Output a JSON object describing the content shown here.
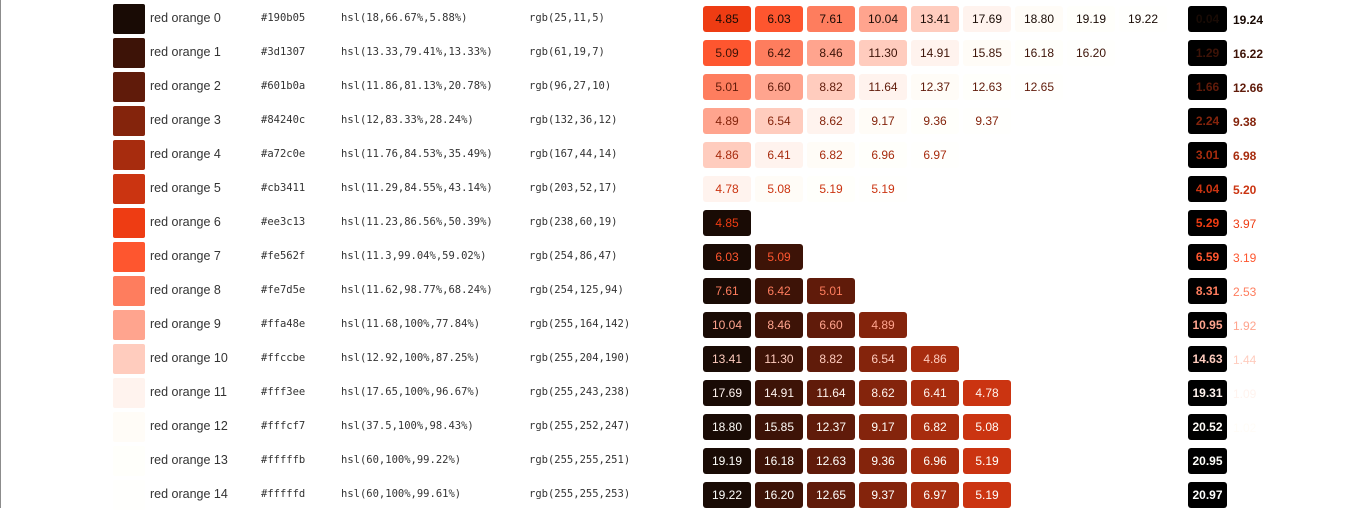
{
  "palette": {
    "rows": [
      {
        "name": "red orange 0",
        "hex": "#190b05",
        "hsl": "hsl(18,66.67%,5.88%)",
        "rgb": "rgb(25,11,5)",
        "color": "#190b05",
        "ratios": [
          "4.85",
          "6.03",
          "7.61",
          "10.04",
          "13.41",
          "17.69",
          "18.80",
          "19.19",
          "19.22"
        ],
        "lead": "0.04",
        "value": "19.24"
      },
      {
        "name": "red orange 1",
        "hex": "#3d1307",
        "hsl": "hsl(13.33,79.41%,13.33%)",
        "rgb": "rgb(61,19,7)",
        "color": "#3d1307",
        "ratios": [
          "5.09",
          "6.42",
          "8.46",
          "11.30",
          "14.91",
          "15.85",
          "16.18",
          "16.20"
        ],
        "lead": "1.29",
        "value": "16.22"
      },
      {
        "name": "red orange 2",
        "hex": "#601b0a",
        "hsl": "hsl(11.86,81.13%,20.78%)",
        "rgb": "rgb(96,27,10)",
        "color": "#601b0a",
        "ratios": [
          "5.01",
          "6.60",
          "8.82",
          "11.64",
          "12.37",
          "12.63",
          "12.65"
        ],
        "lead": "1.66",
        "value": "12.66"
      },
      {
        "name": "red orange 3",
        "hex": "#84240c",
        "hsl": "hsl(12,83.33%,28.24%)",
        "rgb": "rgb(132,36,12)",
        "color": "#84240c",
        "ratios": [
          "4.89",
          "6.54",
          "8.62",
          "9.17",
          "9.36",
          "9.37"
        ],
        "lead": "2.24",
        "value": "9.38"
      },
      {
        "name": "red orange 4",
        "hex": "#a72c0e",
        "hsl": "hsl(11.76,84.53%,35.49%)",
        "rgb": "rgb(167,44,14)",
        "color": "#a72c0e",
        "ratios": [
          "4.86",
          "6.41",
          "6.82",
          "6.96",
          "6.97"
        ],
        "lead": "3.01",
        "value": "6.98"
      },
      {
        "name": "red orange 5",
        "hex": "#cb3411",
        "hsl": "hsl(11.29,84.55%,43.14%)",
        "rgb": "rgb(203,52,17)",
        "color": "#cb3411",
        "ratios": [
          "4.78",
          "5.08",
          "5.19",
          "5.19"
        ],
        "lead": "4.04",
        "value": "5.20"
      },
      {
        "name": "red orange 6",
        "hex": "#ee3c13",
        "hsl": "hsl(11.23,86.56%,50.39%)",
        "rgb": "rgb(238,60,19)",
        "color": "#ee3c13",
        "ratios": [
          "4.85"
        ],
        "lead": "5.29",
        "value": "3.97"
      },
      {
        "name": "red orange 7",
        "hex": "#fe562f",
        "hsl": "hsl(11.3,99.04%,59.02%)",
        "rgb": "rgb(254,86,47)",
        "color": "#fe562f",
        "ratios": [
          "6.03",
          "5.09"
        ],
        "lead": "6.59",
        "value": "3.19"
      },
      {
        "name": "red orange 8",
        "hex": "#fe7d5e",
        "hsl": "hsl(11.62,98.77%,68.24%)",
        "rgb": "rgb(254,125,94)",
        "color": "#fe7d5e",
        "ratios": [
          "7.61",
          "6.42",
          "5.01"
        ],
        "lead": "8.31",
        "value": "2.53"
      },
      {
        "name": "red orange 9",
        "hex": "#ffa48e",
        "hsl": "hsl(11.68,100%,77.84%)",
        "rgb": "rgb(255,164,142)",
        "color": "#ffa48e",
        "ratios": [
          "10.04",
          "8.46",
          "6.60",
          "4.89"
        ],
        "lead": "10.95",
        "value": "1.92"
      },
      {
        "name": "red orange 10",
        "hex": "#ffccbe",
        "hsl": "hsl(12.92,100%,87.25%)",
        "rgb": "rgb(255,204,190)",
        "color": "#ffccbe",
        "ratios": [
          "13.41",
          "11.30",
          "8.82",
          "6.54",
          "4.86"
        ],
        "lead": "14.63",
        "value": "1.44"
      },
      {
        "name": "red orange 11",
        "hex": "#fff3ee",
        "hsl": "hsl(17.65,100%,96.67%)",
        "rgb": "rgb(255,243,238)",
        "color": "#fff3ee",
        "ratios": [
          "17.69",
          "14.91",
          "11.64",
          "8.62",
          "6.41",
          "4.78"
        ],
        "lead": "19.31",
        "value": "1.09"
      },
      {
        "name": "red orange 12",
        "hex": "#fffcf7",
        "hsl": "hsl(37.5,100%,98.43%)",
        "rgb": "rgb(255,252,247)",
        "color": "#fffcf7",
        "ratios": [
          "18.80",
          "15.85",
          "12.37",
          "9.17",
          "6.82",
          "5.08"
        ],
        "lead": "20.52",
        "value": "1.02"
      },
      {
        "name": "red orange 13",
        "hex": "#fffffb",
        "hsl": "hsl(60,100%,99.22%)",
        "rgb": "rgb(255,255,251)",
        "color": "#fffffb",
        "ratios": [
          "19.19",
          "16.18",
          "12.63",
          "9.36",
          "6.96",
          "5.19"
        ],
        "lead": "20.95",
        "value": ""
      },
      {
        "name": "red orange 14",
        "hex": "#fffffd",
        "hsl": "hsl(60,100%,99.61%)",
        "rgb": "rgb(255,255,253)",
        "color": "#fffffd",
        "ratios": [
          "19.22",
          "16.20",
          "12.65",
          "9.37",
          "6.97",
          "5.19"
        ],
        "lead": "20.97",
        "value": ""
      }
    ]
  }
}
